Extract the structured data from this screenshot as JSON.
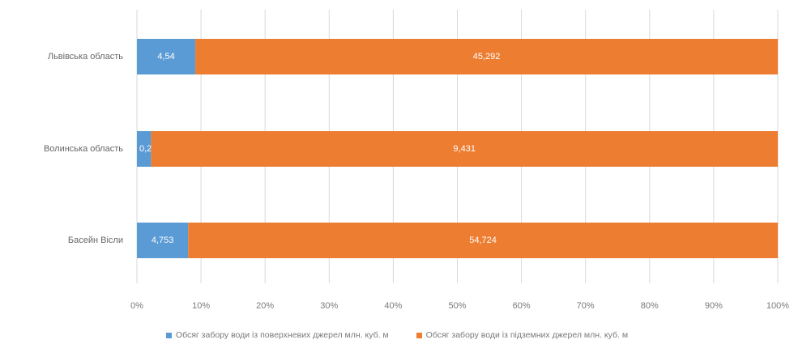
{
  "chart_data": {
    "type": "bar",
    "orientation": "horizontal",
    "stacked": "percent",
    "categories": [
      "Львівська область",
      "Волинська область",
      "Басейн Вісли"
    ],
    "series": [
      {
        "name": "Обсяг забору води із поверхневих джерел млн. куб. м",
        "color": "#5b9bd5",
        "values": [
          4.54,
          0.212,
          4.753
        ],
        "labels": [
          "4,54",
          "0,212",
          "4,753"
        ]
      },
      {
        "name": "Обсяг забору води із підземних джерел млн. куб. м",
        "color": "#ed7d31",
        "values": [
          45.292,
          9.431,
          54.724
        ],
        "labels": [
          "45,292",
          "9,431",
          "54,724"
        ]
      }
    ],
    "x_ticks": [
      "0%",
      "10%",
      "20%",
      "30%",
      "40%",
      "50%",
      "60%",
      "70%",
      "80%",
      "90%",
      "100%"
    ],
    "xlim": [
      0,
      100
    ],
    "grid": true,
    "legend_position": "bottom"
  }
}
